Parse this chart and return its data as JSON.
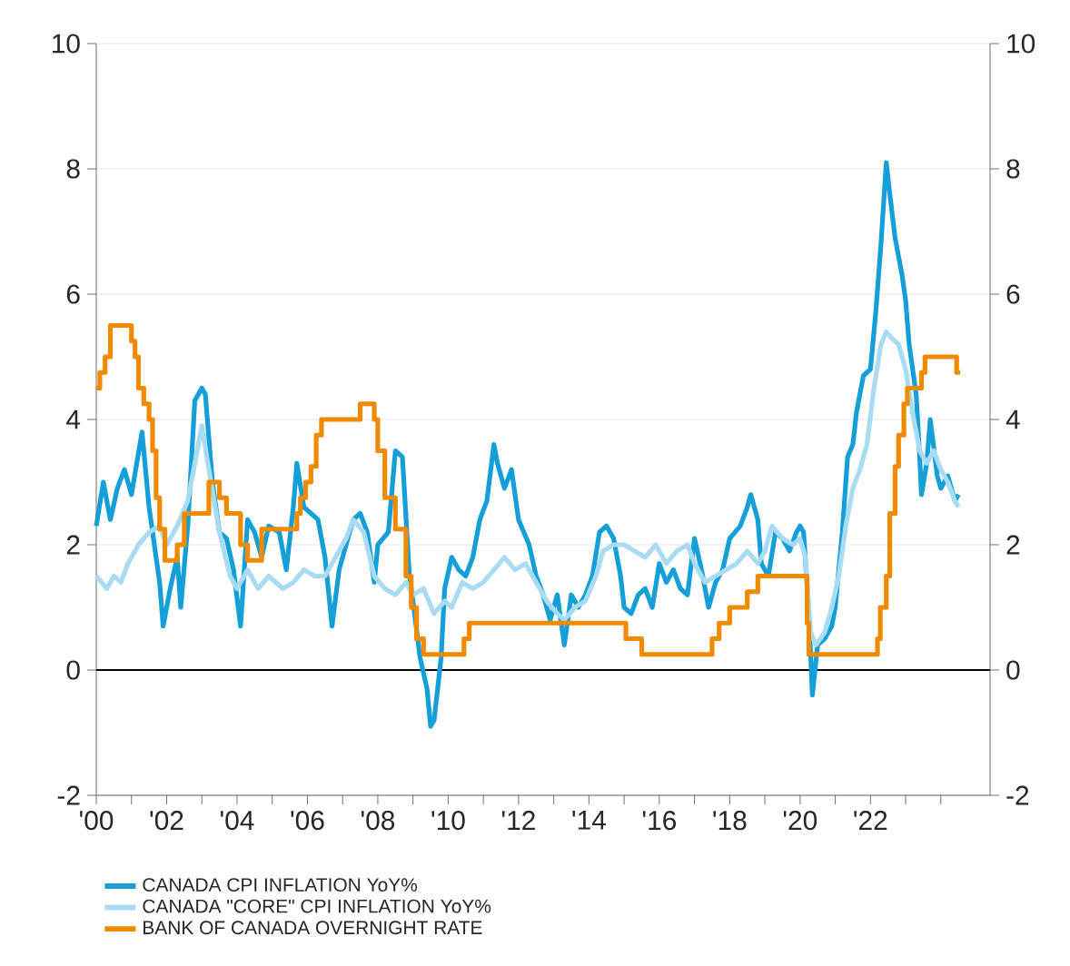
{
  "chart_data": {
    "type": "line",
    "xlim": [
      2000,
      2025.4
    ],
    "xticks": [
      {
        "value": 2000,
        "label": "'00"
      },
      {
        "value": 2001,
        "label": null
      },
      {
        "value": 2002,
        "label": "'02"
      },
      {
        "value": 2003,
        "label": null
      },
      {
        "value": 2004,
        "label": "'04"
      },
      {
        "value": 2005,
        "label": null
      },
      {
        "value": 2006,
        "label": "'06"
      },
      {
        "value": 2007,
        "label": null
      },
      {
        "value": 2008,
        "label": "'08"
      },
      {
        "value": 2009,
        "label": null
      },
      {
        "value": 2010,
        "label": "'10"
      },
      {
        "value": 2011,
        "label": null
      },
      {
        "value": 2012,
        "label": "'12"
      },
      {
        "value": 2013,
        "label": null
      },
      {
        "value": 2014,
        "label": "'14"
      },
      {
        "value": 2015,
        "label": null
      },
      {
        "value": 2016,
        "label": "'16"
      },
      {
        "value": 2017,
        "label": null
      },
      {
        "value": 2018,
        "label": "'18"
      },
      {
        "value": 2019,
        "label": null
      },
      {
        "value": 2020,
        "label": "'20"
      },
      {
        "value": 2021,
        "label": null
      },
      {
        "value": 2022,
        "label": "'22"
      },
      {
        "value": 2023,
        "label": null
      },
      {
        "value": 2024,
        "label": null
      }
    ],
    "ylim": [
      -2,
      10
    ],
    "yticks": [
      -2,
      0,
      2,
      4,
      6,
      8,
      10
    ],
    "y2lim": [
      -2,
      10
    ],
    "y2ticks": [
      -2,
      0,
      2,
      4,
      6,
      8,
      10
    ],
    "grid": "y",
    "legend": "bottom",
    "ref_lines": [
      {
        "axis": "y",
        "value": 0,
        "color": "#000000"
      }
    ],
    "series": [
      {
        "name": "CANADA CPI INFLATION YoY%",
        "color": "#159fd9",
        "x": [
          2000.0,
          2000.2,
          2000.4,
          2000.6,
          2000.8,
          2001.0,
          2001.3,
          2001.5,
          2001.8,
          2001.9,
          2002.1,
          2002.3,
          2002.4,
          2002.6,
          2002.8,
          2003.0,
          2003.1,
          2003.3,
          2003.5,
          2003.7,
          2003.9,
          2004.1,
          2004.3,
          2004.5,
          2004.7,
          2004.9,
          2005.2,
          2005.4,
          2005.6,
          2005.7,
          2005.9,
          2006.1,
          2006.3,
          2006.5,
          2006.7,
          2006.9,
          2007.1,
          2007.3,
          2007.5,
          2007.7,
          2007.9,
          2008.0,
          2008.3,
          2008.5,
          2008.7,
          2008.9,
          2009.0,
          2009.2,
          2009.4,
          2009.5,
          2009.6,
          2009.8,
          2009.9,
          2010.1,
          2010.3,
          2010.5,
          2010.7,
          2010.9,
          2011.1,
          2011.3,
          2011.4,
          2011.6,
          2011.8,
          2012.0,
          2012.3,
          2012.5,
          2012.7,
          2012.9,
          2013.1,
          2013.3,
          2013.5,
          2013.7,
          2013.9,
          2014.1,
          2014.3,
          2014.5,
          2014.7,
          2014.9,
          2015.0,
          2015.2,
          2015.4,
          2015.6,
          2015.8,
          2016.0,
          2016.2,
          2016.4,
          2016.6,
          2016.8,
          2017.0,
          2017.2,
          2017.4,
          2017.6,
          2017.8,
          2018.0,
          2018.3,
          2018.5,
          2018.6,
          2018.8,
          2018.9,
          2019.1,
          2019.3,
          2019.5,
          2019.7,
          2019.9,
          2020.0,
          2020.1,
          2020.25,
          2020.35,
          2020.5,
          2020.7,
          2020.9,
          2021.0,
          2021.2,
          2021.35,
          2021.5,
          2021.6,
          2021.8,
          2022.0,
          2022.15,
          2022.3,
          2022.45,
          2022.55,
          2022.7,
          2022.9,
          2023.0,
          2023.1,
          2023.3,
          2023.4,
          2023.45,
          2023.6,
          2023.7,
          2023.9,
          2024.0,
          2024.2,
          2024.4,
          2024.5
        ],
        "values": [
          2.3,
          3.0,
          2.4,
          2.9,
          3.2,
          2.8,
          3.8,
          2.6,
          1.4,
          0.7,
          1.3,
          1.8,
          1.0,
          2.3,
          4.3,
          4.5,
          4.4,
          3.0,
          2.2,
          2.1,
          1.6,
          0.7,
          2.4,
          2.2,
          1.8,
          2.3,
          2.2,
          1.6,
          2.6,
          3.3,
          2.6,
          2.5,
          2.4,
          1.8,
          0.7,
          1.6,
          2.0,
          2.4,
          2.5,
          2.2,
          1.4,
          2.0,
          2.2,
          3.5,
          3.4,
          1.5,
          1.1,
          0.2,
          -0.3,
          -0.9,
          -0.8,
          0.2,
          1.3,
          1.8,
          1.6,
          1.5,
          1.8,
          2.4,
          2.7,
          3.6,
          3.3,
          2.9,
          3.2,
          2.4,
          2.0,
          1.5,
          1.2,
          0.8,
          1.2,
          0.4,
          1.2,
          1.0,
          1.2,
          1.5,
          2.2,
          2.3,
          2.1,
          1.5,
          1.0,
          0.9,
          1.2,
          1.3,
          1.0,
          1.7,
          1.4,
          1.6,
          1.3,
          1.2,
          2.1,
          1.6,
          1.0,
          1.4,
          1.6,
          2.1,
          2.3,
          2.6,
          2.8,
          2.4,
          1.7,
          1.5,
          2.2,
          2.1,
          1.9,
          2.2,
          2.3,
          2.2,
          0.9,
          -0.4,
          0.4,
          0.5,
          0.7,
          1.0,
          2.2,
          3.4,
          3.6,
          4.1,
          4.7,
          4.8,
          5.7,
          6.8,
          8.1,
          7.6,
          6.9,
          6.3,
          5.9,
          5.2,
          4.4,
          3.4,
          2.8,
          3.3,
          4.0,
          3.1,
          2.9,
          3.1,
          2.7,
          2.8
        ]
      },
      {
        "name": "CANADA \"CORE\" CPI INFLATION YoY%",
        "color": "#a9dcf2",
        "x": [
          2000.0,
          2000.3,
          2000.5,
          2000.7,
          2000.9,
          2001.2,
          2001.5,
          2001.8,
          2002.0,
          2002.3,
          2002.6,
          2002.9,
          2003.0,
          2003.2,
          2003.5,
          2003.8,
          2004.0,
          2004.3,
          2004.6,
          2004.9,
          2005.3,
          2005.6,
          2005.9,
          2006.2,
          2006.5,
          2006.8,
          2007.1,
          2007.3,
          2007.6,
          2007.9,
          2008.2,
          2008.5,
          2008.8,
          2009.0,
          2009.3,
          2009.6,
          2009.9,
          2010.1,
          2010.4,
          2010.7,
          2011.0,
          2011.3,
          2011.6,
          2011.9,
          2012.2,
          2012.5,
          2012.8,
          2013.1,
          2013.3,
          2013.6,
          2013.9,
          2014.2,
          2014.4,
          2014.7,
          2015.0,
          2015.3,
          2015.6,
          2015.9,
          2016.2,
          2016.5,
          2016.8,
          2017.0,
          2017.3,
          2017.6,
          2017.9,
          2018.2,
          2018.5,
          2018.8,
          2019.0,
          2019.2,
          2019.5,
          2019.8,
          2020.0,
          2020.15,
          2020.3,
          2020.45,
          2020.7,
          2020.9,
          2021.1,
          2021.3,
          2021.5,
          2021.7,
          2021.9,
          2022.1,
          2022.3,
          2022.45,
          2022.6,
          2022.8,
          2023.0,
          2023.2,
          2023.4,
          2023.6,
          2023.8,
          2024.0,
          2024.2,
          2024.4,
          2024.5
        ],
        "values": [
          1.5,
          1.3,
          1.5,
          1.4,
          1.7,
          2.0,
          2.2,
          2.3,
          2.0,
          2.3,
          2.7,
          3.6,
          3.9,
          3.2,
          2.2,
          1.5,
          1.3,
          1.6,
          1.3,
          1.5,
          1.3,
          1.4,
          1.6,
          1.5,
          1.5,
          1.8,
          2.1,
          2.4,
          2.2,
          1.5,
          1.3,
          1.2,
          1.4,
          1.2,
          1.3,
          0.9,
          1.1,
          1.0,
          1.4,
          1.3,
          1.4,
          1.6,
          1.8,
          1.6,
          1.7,
          1.4,
          1.1,
          0.9,
          0.8,
          1.0,
          1.1,
          1.5,
          1.9,
          2.0,
          2.0,
          1.9,
          1.8,
          2.0,
          1.7,
          1.9,
          2.0,
          1.7,
          1.4,
          1.5,
          1.6,
          1.7,
          1.9,
          1.7,
          1.9,
          2.3,
          2.1,
          2.0,
          2.1,
          1.8,
          0.6,
          0.4,
          0.6,
          1.0,
          1.5,
          2.3,
          2.9,
          3.2,
          3.6,
          4.5,
          5.2,
          5.4,
          5.3,
          5.2,
          4.8,
          4.1,
          3.5,
          3.3,
          3.5,
          3.2,
          3.0,
          2.7,
          2.6
        ]
      },
      {
        "name": "BANK OF CANADA OVERNIGHT RATE",
        "color": "#f08a00",
        "type": "step",
        "x": [
          2000.0,
          2000.1,
          2000.25,
          2000.4,
          2001.0,
          2001.1,
          2001.2,
          2001.35,
          2001.5,
          2001.6,
          2001.7,
          2001.8,
          2001.95,
          2002.3,
          2002.5,
          2003.2,
          2003.5,
          2003.7,
          2004.1,
          2004.3,
          2004.7,
          2005.7,
          2005.8,
          2005.95,
          2006.1,
          2006.25,
          2006.4,
          2007.5,
          2007.9,
          2008.0,
          2008.2,
          2008.5,
          2008.8,
          2008.95,
          2009.1,
          2009.3,
          2010.45,
          2010.6,
          2010.7,
          2015.05,
          2015.5,
          2017.5,
          2017.7,
          2018.0,
          2018.5,
          2018.8,
          2020.2,
          2020.25,
          2022.2,
          2022.28,
          2022.45,
          2022.55,
          2022.7,
          2022.8,
          2022.95,
          2023.05,
          2023.45,
          2023.55,
          2024.45,
          2024.55
        ],
        "values": [
          4.5,
          4.75,
          5.0,
          5.5,
          5.25,
          5.0,
          4.5,
          4.25,
          4.0,
          3.5,
          2.75,
          2.25,
          1.75,
          2.0,
          2.5,
          3.0,
          2.75,
          2.5,
          2.0,
          1.75,
          2.25,
          2.5,
          2.75,
          3.0,
          3.25,
          3.75,
          4.0,
          4.25,
          4.0,
          3.5,
          2.75,
          2.25,
          1.5,
          1.0,
          0.5,
          0.25,
          0.5,
          0.75,
          0.75,
          0.5,
          0.25,
          0.5,
          0.75,
          1.0,
          1.25,
          1.5,
          0.75,
          0.25,
          0.5,
          1.0,
          1.5,
          2.5,
          3.25,
          3.75,
          4.25,
          4.5,
          4.75,
          5.0,
          4.75,
          4.75
        ]
      }
    ]
  }
}
